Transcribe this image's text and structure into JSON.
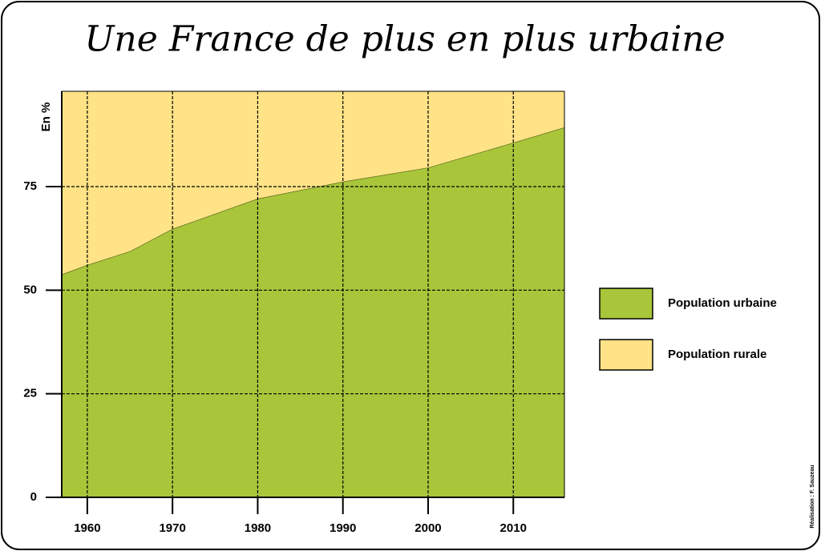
{
  "chart_data": {
    "type": "stacked-area",
    "title": "Une France de plus en plus urbaine",
    "y_label": "En %",
    "credit": "Réalisation : F. Sauzeau",
    "x": [
      1957,
      1960,
      1965,
      1970,
      1980,
      1990,
      2000,
      2010,
      2016
    ],
    "series": [
      {
        "name": "Population urbaine",
        "color": "#a9c63b",
        "values": [
          53.8,
          56.1,
          59.4,
          64.8,
          72.1,
          76.2,
          79.6,
          85.6,
          89.3
        ]
      },
      {
        "name": "Population rurale",
        "color": "#ffe386",
        "values": [
          46.2,
          43.9,
          40.6,
          35.2,
          27.9,
          23.8,
          20.4,
          14.4,
          10.7
        ]
      }
    ],
    "xlim": [
      1957,
      2016
    ],
    "xticks": [
      1960,
      1970,
      1980,
      1990,
      2000,
      2010
    ],
    "ylim": [
      0,
      98
    ],
    "yticks": [
      0,
      25,
      50,
      75
    ],
    "grid": true,
    "legend": "right"
  }
}
